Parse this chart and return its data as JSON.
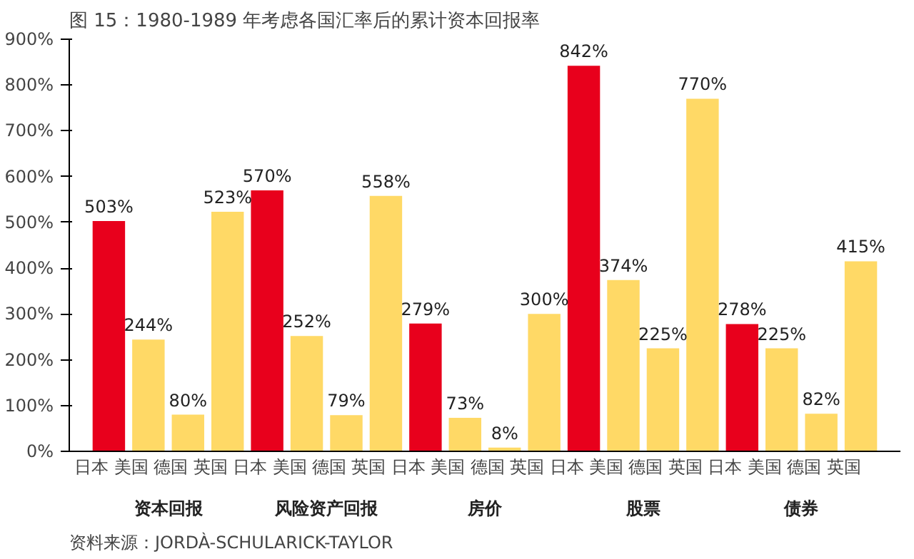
{
  "chart_data": {
    "type": "bar",
    "title": "图 15：1980-1989 年考虑各国汇率后的累计资本回报率",
    "categories": [
      "日本",
      "美国",
      "德国",
      "英国",
      "日本",
      "美国",
      "德国",
      "英国",
      "日本",
      "美国",
      "德国",
      "英国",
      "日本",
      "美国",
      "德国",
      "英国",
      "日本",
      "美国",
      "德国",
      "英国"
    ],
    "values": [
      503,
      244,
      80,
      523,
      570,
      252,
      79,
      558,
      279,
      73,
      8,
      300,
      842,
      374,
      225,
      770,
      278,
      225,
      82,
      415
    ],
    "value_labels": [
      "503%",
      "244%",
      "80%",
      "523%",
      "570%",
      "252%",
      "79%",
      "558%",
      "279%",
      "73%",
      "8%",
      "300%",
      "842%",
      "374%",
      "225%",
      "770%",
      "278%",
      "225%",
      "82%",
      "415%"
    ],
    "colors": [
      "#e8001c",
      "#ffd966",
      "#ffd966",
      "#ffd966",
      "#e8001c",
      "#ffd966",
      "#ffd966",
      "#ffd966",
      "#e8001c",
      "#ffd966",
      "#ffd966",
      "#ffd966",
      "#e8001c",
      "#ffd966",
      "#ffd966",
      "#ffd966",
      "#e8001c",
      "#ffd966",
      "#ffd966",
      "#ffd966"
    ],
    "ylim": [
      0,
      900
    ],
    "yticks": [
      {
        "value": 0,
        "label": "0%"
      },
      {
        "value": 100,
        "label": "100%"
      },
      {
        "value": 200,
        "label": "200%"
      },
      {
        "value": 300,
        "label": "300%"
      },
      {
        "value": 400,
        "label": "400%"
      },
      {
        "value": 500,
        "label": "500%"
      },
      {
        "value": 600,
        "label": "600%"
      },
      {
        "value": 700,
        "label": "700%"
      },
      {
        "value": 800,
        "label": "800%"
      },
      {
        "value": 900,
        "label": "900%"
      }
    ],
    "grid": false,
    "legend": false,
    "annotations": [
      "资本回报",
      "风险资产回报",
      "房价",
      "股票",
      "债券",
      "资料来源：JORDÀ-SCHULARICK-TAYLOR"
    ]
  }
}
